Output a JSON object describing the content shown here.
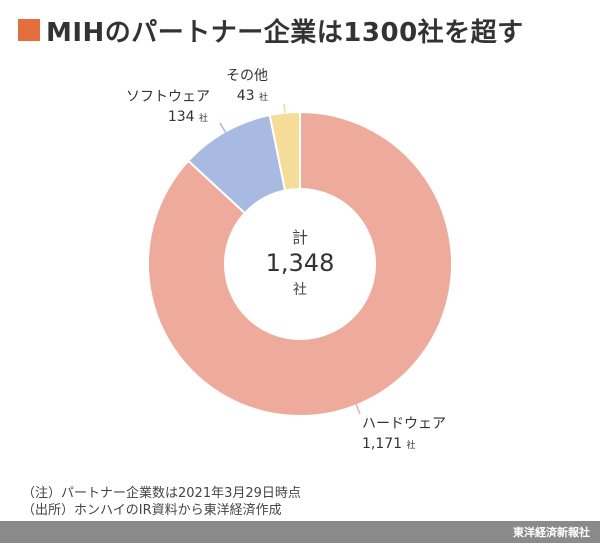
{
  "header": {
    "title": "MIHのパートナー企業は1300社を超す",
    "accent_color": "#e36f3f"
  },
  "chart_data": {
    "type": "pie",
    "variant": "donut",
    "center": {
      "label": "計",
      "value": "1,348",
      "unit": "社"
    },
    "slices": [
      {
        "label": "ハードウェア",
        "value": 1171,
        "value_text": "1,171",
        "unit": "社",
        "color": "#eeab9c"
      },
      {
        "label": "ソフトウェア",
        "value": 134,
        "value_text": "134",
        "unit": "社",
        "color": "#a8b9e2"
      },
      {
        "label": "その他",
        "value": 43,
        "value_text": "43",
        "unit": "社",
        "color": "#f6dc99"
      }
    ]
  },
  "notes": [
    "（注）パートナー企業数は2021年3月29日時点",
    "（出所）ホンハイのIR資料から東洋経済作成"
  ],
  "footer": {
    "credit": "東洋経済新報社"
  }
}
